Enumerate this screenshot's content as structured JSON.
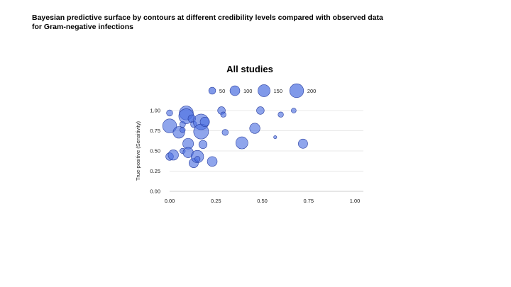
{
  "slide": {
    "title_line1": "Bayesian predictive surface by contours at different credibility levels compared with observed data",
    "title_line2": "for Gram-negative infections"
  },
  "chart_data": {
    "type": "scatter",
    "title": "All studies",
    "xlabel": "",
    "ylabel": "True-positive (Sensitivity)",
    "xlim": [
      0,
      1
    ],
    "ylim": [
      0,
      1
    ],
    "x_ticks": [
      "0.00",
      "0.25",
      "0.50",
      "0.75",
      "1.00"
    ],
    "y_ticks": [
      "0.00",
      "0.25",
      "0.50",
      "0.75",
      "1.00"
    ],
    "grid": "horizontal",
    "size_legend": {
      "placement": "top",
      "entries": [
        {
          "label": "50",
          "value": 50
        },
        {
          "label": "100",
          "value": 100
        },
        {
          "label": "150",
          "value": 150
        },
        {
          "label": "200",
          "value": 200
        }
      ]
    },
    "color": "#4a6ee0",
    "points": [
      {
        "x": 0.0,
        "y": 0.97,
        "n": 40
      },
      {
        "x": 0.0,
        "y": 0.81,
        "n": 200
      },
      {
        "x": 0.0,
        "y": 0.43,
        "n": 60
      },
      {
        "x": 0.02,
        "y": 0.45,
        "n": 110
      },
      {
        "x": 0.05,
        "y": 0.73,
        "n": 140
      },
      {
        "x": 0.07,
        "y": 0.83,
        "n": 35
      },
      {
        "x": 0.07,
        "y": 0.76,
        "n": 30
      },
      {
        "x": 0.07,
        "y": 0.5,
        "n": 30
      },
      {
        "x": 0.09,
        "y": 0.97,
        "n": 200
      },
      {
        "x": 0.09,
        "y": 0.93,
        "n": 230
      },
      {
        "x": 0.1,
        "y": 0.59,
        "n": 120
      },
      {
        "x": 0.1,
        "y": 0.48,
        "n": 110
      },
      {
        "x": 0.12,
        "y": 0.9,
        "n": 60
      },
      {
        "x": 0.13,
        "y": 0.83,
        "n": 40
      },
      {
        "x": 0.13,
        "y": 0.35,
        "n": 90
      },
      {
        "x": 0.15,
        "y": 0.43,
        "n": 160
      },
      {
        "x": 0.15,
        "y": 0.4,
        "n": 30
      },
      {
        "x": 0.17,
        "y": 0.86,
        "n": 250
      },
      {
        "x": 0.17,
        "y": 0.74,
        "n": 230
      },
      {
        "x": 0.18,
        "y": 0.58,
        "n": 70
      },
      {
        "x": 0.19,
        "y": 0.86,
        "n": 90
      },
      {
        "x": 0.23,
        "y": 0.37,
        "n": 100
      },
      {
        "x": 0.28,
        "y": 1.0,
        "n": 60
      },
      {
        "x": 0.29,
        "y": 0.95,
        "n": 30
      },
      {
        "x": 0.3,
        "y": 0.73,
        "n": 40
      },
      {
        "x": 0.39,
        "y": 0.6,
        "n": 150
      },
      {
        "x": 0.46,
        "y": 0.78,
        "n": 110
      },
      {
        "x": 0.49,
        "y": 1.0,
        "n": 60
      },
      {
        "x": 0.57,
        "y": 0.67,
        "n": 10
      },
      {
        "x": 0.6,
        "y": 0.95,
        "n": 30
      },
      {
        "x": 0.67,
        "y": 1.0,
        "n": 25
      },
      {
        "x": 0.72,
        "y": 0.59,
        "n": 90
      }
    ]
  }
}
